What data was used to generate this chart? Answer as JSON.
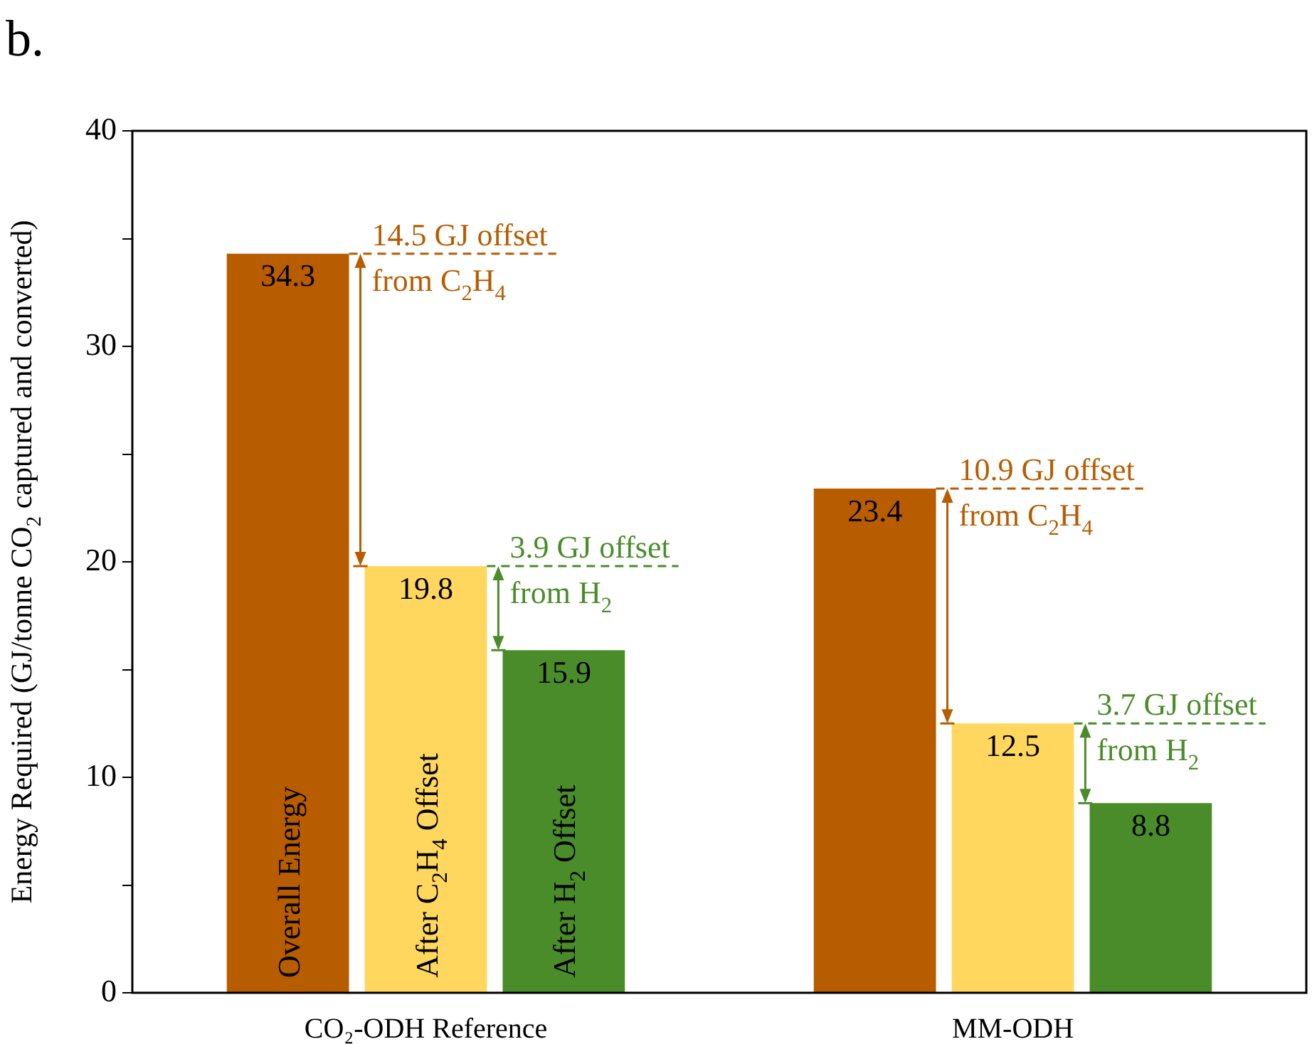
{
  "chart_data": {
    "type": "bar",
    "title": "b.",
    "ylabel": "Energy Required (GJ/tonne CO$_{2}$ captured and converted)",
    "categories": [
      "CO₂-ODH Reference",
      "MM-ODH"
    ],
    "series": [
      {
        "name": "Overall Energy",
        "color": "#b85c00",
        "values": [
          34.3,
          23.4
        ]
      },
      {
        "name": "After C$_{2}$H$_{4}$ Offset",
        "color": "#ffd75e",
        "values": [
          19.8,
          12.5
        ]
      },
      {
        "name": "After H$_{2}$ Offset",
        "color": "#4a8c2a",
        "values": [
          15.9,
          8.8
        ]
      }
    ],
    "ylim": [
      0,
      40
    ],
    "yticks": [
      0,
      {
        "value": 5,
        "label": null
      },
      10,
      {
        "value": 15,
        "label": null
      },
      20,
      {
        "value": 25,
        "label": null
      },
      30,
      {
        "value": 35,
        "label": null
      },
      40
    ],
    "data_labels": true,
    "legend": false,
    "annotations": [
      "14.5 GJ offset",
      "from C$_{2}$H$_{4}$",
      "3.9 GJ offset",
      "from H$_{2}$",
      "10.9 GJ offset",
      "from C$_{2}$H$_{4}$",
      "3.7 GJ offset",
      "from H$_{2}$"
    ]
  }
}
